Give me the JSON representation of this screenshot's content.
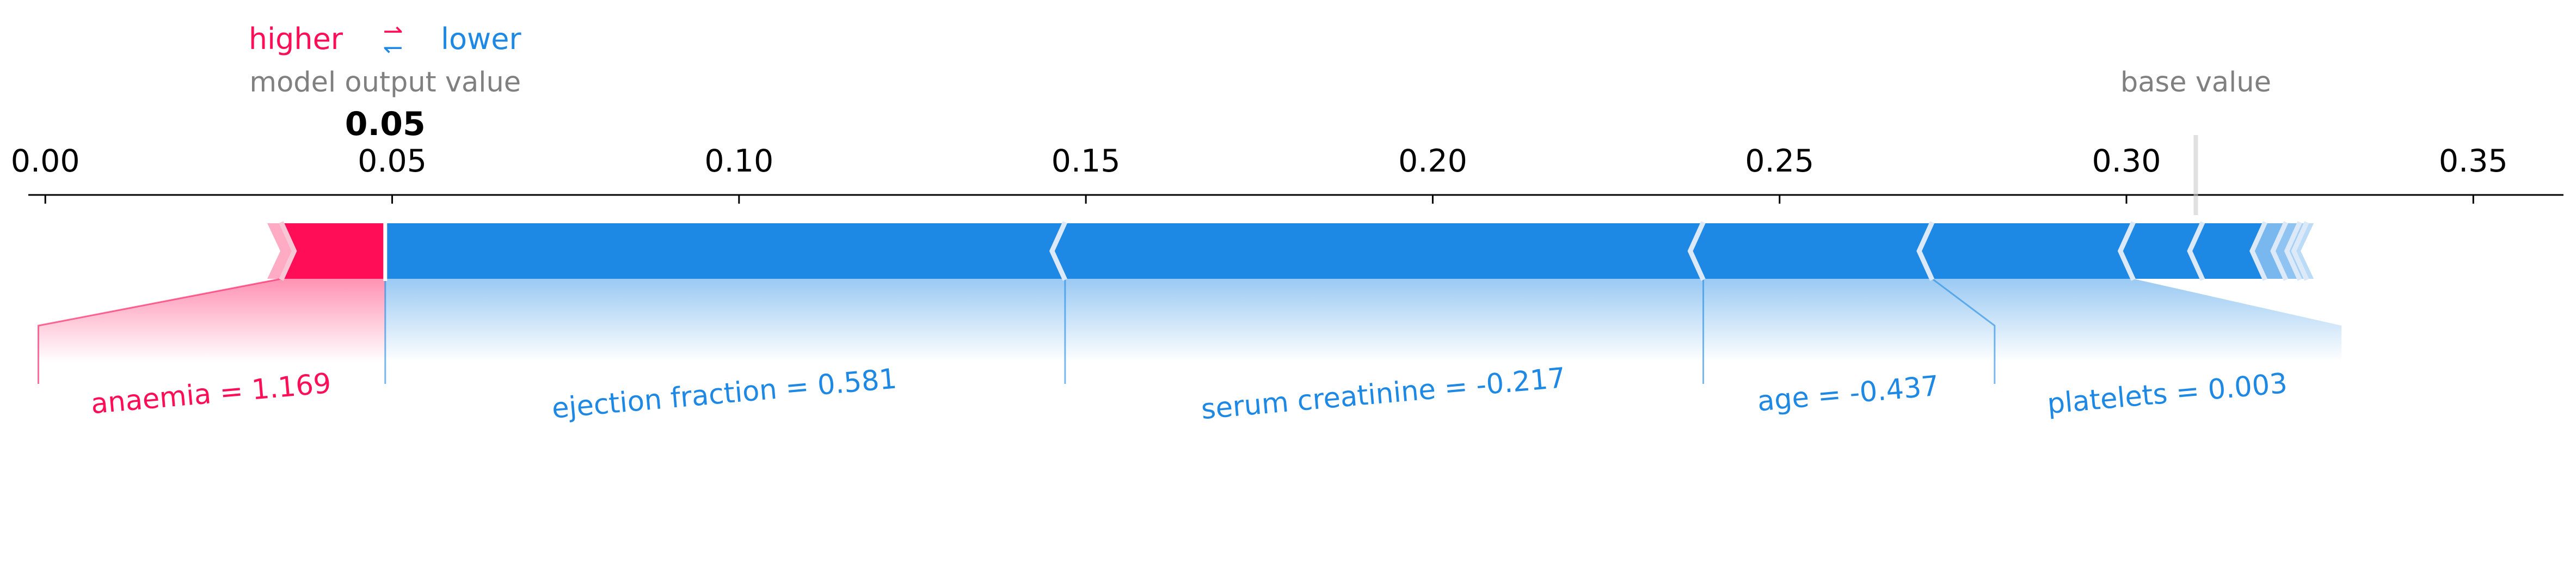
{
  "legend": {
    "higher": "higher",
    "arrows_icon": "swap-arrows-icon",
    "lower": "lower"
  },
  "labels": {
    "model_output": "model output value",
    "base_value": "base value",
    "output_value": "0.05"
  },
  "colors": {
    "positive": "#ff0d57",
    "negative": "#1e88e5",
    "axis": "#000000",
    "grey": "#808080"
  },
  "chart_data": {
    "type": "force",
    "xlim": [
      -0.003,
      0.363
    ],
    "ticks": [
      0.0,
      0.05,
      0.1,
      0.15,
      0.2,
      0.25,
      0.3,
      0.35
    ],
    "tick_labels": [
      "0.00",
      "0.05",
      "0.10",
      "0.15",
      "0.20",
      "0.25",
      "0.30",
      "0.35"
    ],
    "base_value": 0.31,
    "output_value": 0.049,
    "positive_segments": [
      {
        "label": "anaemia = 1.169",
        "start": 0.034,
        "end": 0.049
      },
      {
        "label": "",
        "start": 0.032,
        "end": 0.034
      }
    ],
    "negative_segments": [
      {
        "label": "ejection fraction = 0.581",
        "start": 0.049,
        "end": 0.147
      },
      {
        "label": "serum creatinine = -0.217",
        "start": 0.147,
        "end": 0.239
      },
      {
        "label": "age = -0.437",
        "start": 0.239,
        "end": 0.272
      },
      {
        "label": "platelets = 0.003",
        "start": 0.272,
        "end": 0.301
      },
      {
        "label": "",
        "start": 0.301,
        "end": 0.311
      },
      {
        "label": "",
        "start": 0.311,
        "end": 0.32
      },
      {
        "label": "",
        "start": 0.32,
        "end": 0.323
      },
      {
        "label": "",
        "start": 0.323,
        "end": 0.325
      },
      {
        "label": "",
        "start": 0.325,
        "end": 0.326
      },
      {
        "label": "",
        "start": 0.326,
        "end": 0.327
      }
    ],
    "feature_labels": [
      {
        "text": "anaemia = 1.169",
        "effect": "positive",
        "segment_start": 0.034,
        "segment_end": 0.049,
        "anchor_x": [
          -0.001,
          0.049
        ]
      },
      {
        "text": "ejection fraction = 0.581",
        "effect": "negative",
        "segment_start": 0.049,
        "segment_end": 0.147,
        "anchor_x": [
          0.049,
          0.147
        ]
      },
      {
        "text": "serum creatinine = -0.217",
        "effect": "negative",
        "segment_start": 0.147,
        "segment_end": 0.239,
        "anchor_x": [
          0.147,
          0.239
        ]
      },
      {
        "text": "age = -0.437",
        "effect": "negative",
        "segment_start": 0.239,
        "segment_end": 0.272,
        "anchor_x": [
          0.239,
          0.281
        ]
      },
      {
        "text": "platelets = 0.003",
        "effect": "negative",
        "segment_start": 0.272,
        "segment_end": 0.301,
        "anchor_x": [
          0.281,
          0.331
        ]
      }
    ]
  }
}
